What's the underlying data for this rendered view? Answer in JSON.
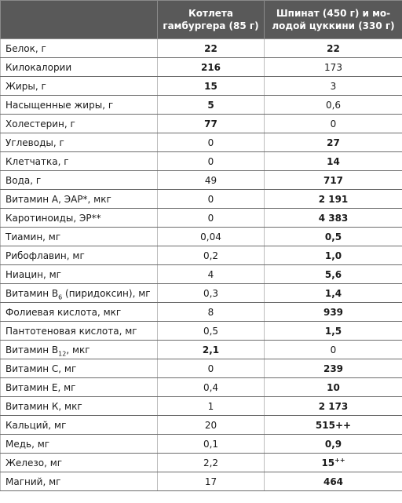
{
  "header": {
    "col_blank": "",
    "col_1": "Котлета гамбургера (85 г)",
    "col_2": "Шпинат (450 г) и мо-лодой цуккини (330 г)"
  },
  "rows": [
    {
      "label": "Белок, г",
      "v1": "22",
      "v2": "22"
    },
    {
      "label": "Килокалории",
      "v1": "216",
      "v2": "173"
    },
    {
      "label": "Жиры, г",
      "v1": "15",
      "v2": "3"
    },
    {
      "label": "Насыщенные жиры, г",
      "v1": "5",
      "v2": "0,6"
    },
    {
      "label": "Холестерин, г",
      "v1": "77",
      "v2": "0"
    },
    {
      "label": "Углеводы, г",
      "v1": "0",
      "v2": "27"
    },
    {
      "label": "Клетчатка, г",
      "v1": "0",
      "v2": "14"
    },
    {
      "label": "Вода, г",
      "v1": "49",
      "v2": "717"
    },
    {
      "label": "Витамин А, ЭАР*, мкг",
      "v1": "0",
      "v2": "2 191"
    },
    {
      "label": "Каротиноиды, ЭР**",
      "v1": "0",
      "v2": "4 383"
    },
    {
      "label": "Тиамин, мг",
      "v1": "0,04",
      "v2": "0,5"
    },
    {
      "label": "Рибофлавин, мг",
      "v1": "0,2",
      "v2": "1,0"
    },
    {
      "label": "Ниацин, мг",
      "v1": "4",
      "v2": "5,6"
    },
    {
      "label_pre": "Витамин В",
      "label_sub": "6",
      "label_post": " (пиридоксин), мг",
      "v1": "0,3",
      "v2": "1,4"
    },
    {
      "label": "Фолиевая кислота, мкг",
      "v1": "8",
      "v2": "939"
    },
    {
      "label": "Пантотеновая кислота, мг",
      "v1": "0,5",
      "v2": "1,5"
    },
    {
      "label_pre": "Витамин В",
      "label_sub": "12",
      "label_post": ", мкг",
      "v1": "2,1",
      "v2": "0"
    },
    {
      "label": "Витамин С, мг",
      "v1": "0",
      "v2": "239"
    },
    {
      "label": "Витамин Е, мг",
      "v1": "0,4",
      "v2": "10"
    },
    {
      "label": "Витамин К, мкг",
      "v1": "1",
      "v2": "2 173"
    },
    {
      "label": "Кальций, мг",
      "v1": "20",
      "v2": "515++"
    },
    {
      "label": "Медь, мг",
      "v1": "0,1",
      "v2": "0,9"
    },
    {
      "label": "Железо, мг",
      "v1": "2,2",
      "v2_main": "15",
      "v2_sup": "++"
    },
    {
      "label": "Магний, мг",
      "v1": "17",
      "v2": "464"
    }
  ]
}
